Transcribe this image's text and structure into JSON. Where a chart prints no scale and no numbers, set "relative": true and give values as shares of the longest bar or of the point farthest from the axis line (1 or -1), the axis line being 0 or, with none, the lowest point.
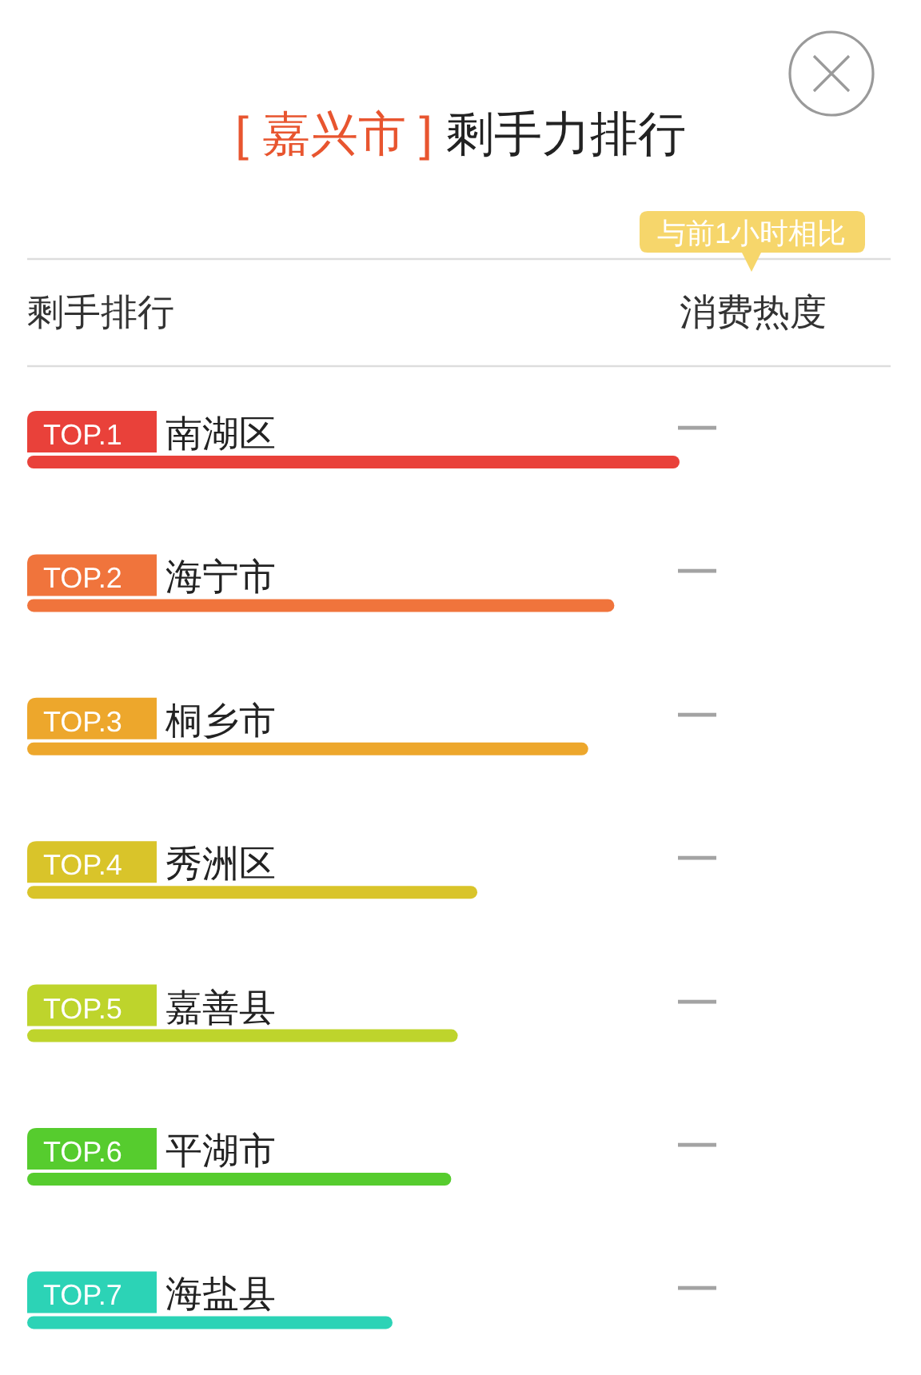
{
  "chart_data": {
    "type": "bar",
    "orientation": "horizontal",
    "relative": true,
    "title": "[ 嘉兴市 ] 剩手力排行",
    "ylabel": "剩手排行",
    "annotations": [
      "消费热度",
      "与前1小时相比",
      "—",
      "—",
      "—",
      "—",
      "—",
      "—",
      "—"
    ],
    "categories": [
      "TOP.1 南湖区",
      "TOP.2 海宁市",
      "TOP.3 桐乡市",
      "TOP.4 秀洲区",
      "TOP.5 嘉善县",
      "TOP.6 平湖市",
      "TOP.7 海盐县"
    ],
    "values": [
      1,
      0.9,
      0.86,
      0.69,
      0.66,
      0.65,
      0.56
    ],
    "colors": [
      "#e9413a",
      "#f0743c",
      "#eda72c",
      "#d9c42a",
      "#bed42c",
      "#56cc2e",
      "#2cd3b6"
    ]
  }
}
